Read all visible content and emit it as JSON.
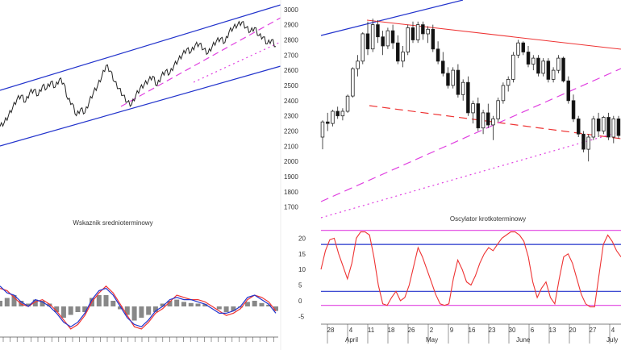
{
  "colors": {
    "channel": "#2233cc",
    "resistance": "#ee3333",
    "support_dash": "#e040e0",
    "osc_line": "#ee3333",
    "osc_band": "#e040e0",
    "osc_level": "#2233cc",
    "price_line": "#222222",
    "histogram": "#888888"
  },
  "left_panel": {
    "price_chart": {
      "type": "line",
      "note": "long-term price within rising channel (upper blue, lower blue, dashed magenta mid-trend)",
      "values": [
        2150,
        2180,
        2230,
        2290,
        2350,
        2380,
        2330,
        2400,
        2420,
        2380,
        2450,
        2430,
        2480,
        2440,
        2500,
        2470,
        2350,
        2320,
        2230,
        2280,
        2250,
        2330,
        2400,
        2450,
        2520,
        2600,
        2560,
        2480,
        2430,
        2380,
        2330,
        2310,
        2380,
        2430,
        2460,
        2490,
        2520,
        2450,
        2520,
        2560,
        2540,
        2600,
        2640,
        2680,
        2720,
        2700,
        2750,
        2760,
        2720,
        2690,
        2740,
        2780,
        2800,
        2770,
        2850,
        2880,
        2900,
        2920,
        2880,
        2850,
        2880,
        2820,
        2810,
        2760,
        2790,
        2740
      ]
    },
    "indicator": {
      "title": "Wskaznik srednioterminowy",
      "series_a": [
        0.8,
        0.7,
        0.4,
        0.1,
        0.0,
        0.2,
        0.3,
        0.1,
        -0.2,
        -0.6,
        -1.0,
        -0.8,
        -0.4,
        0.2,
        0.6,
        0.9,
        0.6,
        0.1,
        -0.4,
        -0.9,
        -1.0,
        -0.7,
        -0.3,
        -0.1,
        0.2,
        0.5,
        0.4,
        0.3,
        0.3,
        0.2,
        0.0,
        -0.2,
        -0.4,
        -0.3,
        -0.1,
        0.3,
        0.5,
        0.4,
        0.2,
        -0.2
      ],
      "series_b": [
        0.9,
        0.6,
        0.5,
        0.2,
        0.0,
        0.3,
        0.2,
        0.0,
        -0.3,
        -0.7,
        -0.9,
        -0.7,
        -0.3,
        0.3,
        0.7,
        0.8,
        0.5,
        0.0,
        -0.5,
        -0.8,
        -0.9,
        -0.6,
        -0.2,
        0.0,
        0.3,
        0.4,
        0.3,
        0.3,
        0.2,
        0.1,
        -0.1,
        -0.3,
        -0.3,
        -0.2,
        0.0,
        0.4,
        0.5,
        0.3,
        0.1,
        -0.3
      ],
      "histogram": [
        0.1,
        0.15,
        0.2,
        0.1,
        0.05,
        0.12,
        0.1,
        0.05,
        -0.1,
        -0.2,
        -0.15,
        -0.1,
        -0.1,
        0.15,
        0.2,
        0.2,
        0.1,
        -0.05,
        -0.15,
        -0.25,
        -0.2,
        -0.15,
        -0.1,
        0.05,
        0.1,
        0.12,
        0.08,
        0.06,
        0.05,
        0.04,
        0.0,
        -0.05,
        -0.1,
        -0.08,
        -0.02,
        0.08,
        0.1,
        0.06,
        0.03,
        -0.08
      ]
    }
  },
  "right_panel": {
    "price_axis": {
      "ticks": [
        3000,
        2900,
        2800,
        2700,
        2600,
        2500,
        2400,
        2300,
        2200,
        2100,
        2000,
        1900,
        1800,
        1700
      ],
      "ylim": [
        1640,
        3020
      ]
    },
    "candles": {
      "type": "candlestick",
      "ohlc": [
        [
          2160,
          2270,
          2080,
          2260
        ],
        [
          2260,
          2320,
          2200,
          2250
        ],
        [
          2250,
          2340,
          2230,
          2330
        ],
        [
          2330,
          2360,
          2280,
          2300
        ],
        [
          2300,
          2350,
          2270,
          2330
        ],
        [
          2330,
          2440,
          2320,
          2430
        ],
        [
          2430,
          2620,
          2420,
          2610
        ],
        [
          2610,
          2700,
          2560,
          2660
        ],
        [
          2660,
          2850,
          2640,
          2840
        ],
        [
          2840,
          2920,
          2700,
          2740
        ],
        [
          2740,
          2940,
          2720,
          2900
        ],
        [
          2900,
          2930,
          2780,
          2820
        ],
        [
          2820,
          2860,
          2700,
          2760
        ],
        [
          2760,
          2880,
          2740,
          2860
        ],
        [
          2860,
          2900,
          2740,
          2780
        ],
        [
          2780,
          2830,
          2640,
          2660
        ],
        [
          2660,
          2760,
          2620,
          2720
        ],
        [
          2720,
          2900,
          2700,
          2880
        ],
        [
          2880,
          2920,
          2780,
          2800
        ],
        [
          2800,
          2920,
          2780,
          2900
        ],
        [
          2900,
          2920,
          2800,
          2840
        ],
        [
          2840,
          2890,
          2780,
          2870
        ],
        [
          2870,
          2900,
          2720,
          2740
        ],
        [
          2740,
          2790,
          2640,
          2660
        ],
        [
          2660,
          2720,
          2560,
          2580
        ],
        [
          2580,
          2620,
          2480,
          2500
        ],
        [
          2500,
          2620,
          2480,
          2600
        ],
        [
          2600,
          2640,
          2420,
          2440
        ],
        [
          2440,
          2540,
          2400,
          2520
        ],
        [
          2520,
          2560,
          2300,
          2320
        ],
        [
          2320,
          2400,
          2250,
          2380
        ],
        [
          2380,
          2420,
          2200,
          2220
        ],
        [
          2220,
          2340,
          2180,
          2320
        ],
        [
          2320,
          2380,
          2220,
          2240
        ],
        [
          2240,
          2300,
          2140,
          2280
        ],
        [
          2280,
          2420,
          2260,
          2400
        ],
        [
          2400,
          2520,
          2380,
          2500
        ],
        [
          2500,
          2560,
          2460,
          2540
        ],
        [
          2540,
          2720,
          2520,
          2700
        ],
        [
          2700,
          2800,
          2680,
          2780
        ],
        [
          2780,
          2790,
          2700,
          2720
        ],
        [
          2720,
          2760,
          2620,
          2640
        ],
        [
          2640,
          2700,
          2600,
          2680
        ],
        [
          2680,
          2700,
          2560,
          2580
        ],
        [
          2580,
          2680,
          2560,
          2660
        ],
        [
          2660,
          2680,
          2520,
          2540
        ],
        [
          2540,
          2620,
          2520,
          2600
        ],
        [
          2600,
          2700,
          2580,
          2680
        ],
        [
          2680,
          2690,
          2520,
          2530
        ],
        [
          2530,
          2560,
          2380,
          2400
        ],
        [
          2400,
          2440,
          2260,
          2280
        ],
        [
          2280,
          2300,
          2160,
          2180
        ],
        [
          2180,
          2200,
          2060,
          2080
        ],
        [
          2080,
          2180,
          2000,
          2160
        ],
        [
          2160,
          2300,
          2140,
          2280
        ],
        [
          2280,
          2320,
          2160,
          2200
        ],
        [
          2200,
          2300,
          2180,
          2290
        ],
        [
          2290,
          2320,
          2140,
          2160
        ],
        [
          2160,
          2300,
          2120,
          2280
        ],
        [
          2280,
          2300,
          2150,
          2170
        ]
      ]
    },
    "oscillator": {
      "title": "Oscylator krotkoterminowy",
      "ticks": [
        20,
        15,
        10,
        5,
        0,
        -5
      ],
      "ylim": [
        -7,
        25
      ],
      "upper_band": 22.5,
      "lower_band": -1.5,
      "level_high": 18,
      "level_low": 3,
      "values": [
        10,
        16,
        19.5,
        20,
        15,
        11,
        7,
        12,
        20,
        22,
        22,
        21,
        14,
        5,
        -1,
        -1.5,
        1,
        3,
        0,
        1,
        5,
        11,
        17,
        14,
        10,
        6,
        2,
        -1,
        -1.5,
        -1,
        7,
        13,
        10,
        6,
        5,
        8,
        12,
        15,
        17,
        16,
        18,
        20,
        21,
        22,
        22,
        21,
        19,
        14,
        6,
        1,
        4,
        6,
        1,
        -1,
        7,
        14,
        15,
        12,
        7,
        2,
        -1,
        -2,
        -2,
        8,
        18,
        21,
        19,
        16,
        14
      ]
    },
    "x_axis": {
      "ticks": [
        "28",
        "4",
        "11",
        "18",
        "26",
        "2",
        "9",
        "16",
        "23",
        "30",
        "6",
        "13",
        "20",
        "27",
        "4"
      ],
      "months": [
        "April",
        "May",
        "June",
        "July"
      ]
    }
  }
}
